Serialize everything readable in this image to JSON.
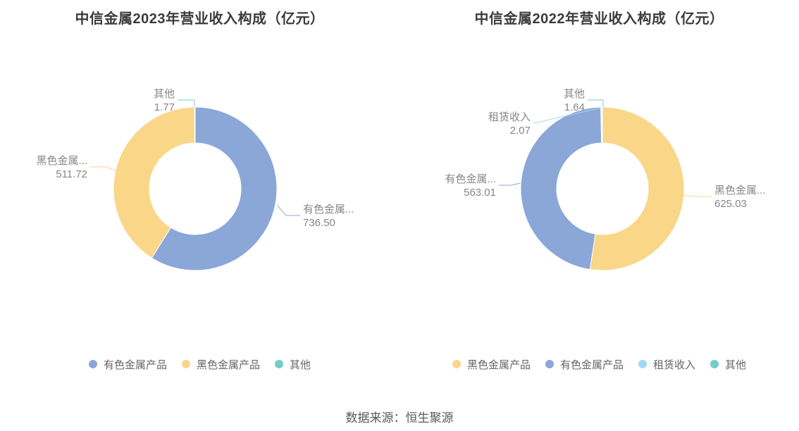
{
  "page": {
    "source_note": "数据来源：恒生聚源"
  },
  "chart_data": [
    {
      "type": "pie",
      "variant": "donut",
      "title": "中信金属2023年营业收入构成（亿元）",
      "unit": "亿元",
      "legend_position": "bottom",
      "start_angle": "top",
      "direction": "clockwise",
      "slices": [
        {
          "name": "有色金属产品",
          "short_label": "有色金属...",
          "value": 736.5,
          "value_text": "736.50",
          "color": "#8BA7D7"
        },
        {
          "name": "黑色金属产品",
          "short_label": "黑色金属...",
          "value": 511.72,
          "value_text": "511.72",
          "color": "#FAD689"
        },
        {
          "name": "其他",
          "short_label": "其他",
          "value": 1.77,
          "value_text": "1.77",
          "color": "#75CBC8"
        }
      ]
    },
    {
      "type": "pie",
      "variant": "donut",
      "title": "中信金属2022年营业收入构成（亿元）",
      "unit": "亿元",
      "legend_position": "bottom",
      "start_angle": "top",
      "direction": "clockwise",
      "slices": [
        {
          "name": "黑色金属产品",
          "short_label": "黑色金属...",
          "value": 625.03,
          "value_text": "625.03",
          "color": "#FAD689"
        },
        {
          "name": "有色金属产品",
          "short_label": "有色金属...",
          "value": 563.01,
          "value_text": "563.01",
          "color": "#8BA7D7"
        },
        {
          "name": "租赁收入",
          "short_label": "租赁收入",
          "value": 2.07,
          "value_text": "2.07",
          "color": "#A0D8F3"
        },
        {
          "name": "其他",
          "short_label": "其他",
          "value": 1.64,
          "value_text": "1.64",
          "color": "#75CBC8"
        }
      ]
    }
  ]
}
